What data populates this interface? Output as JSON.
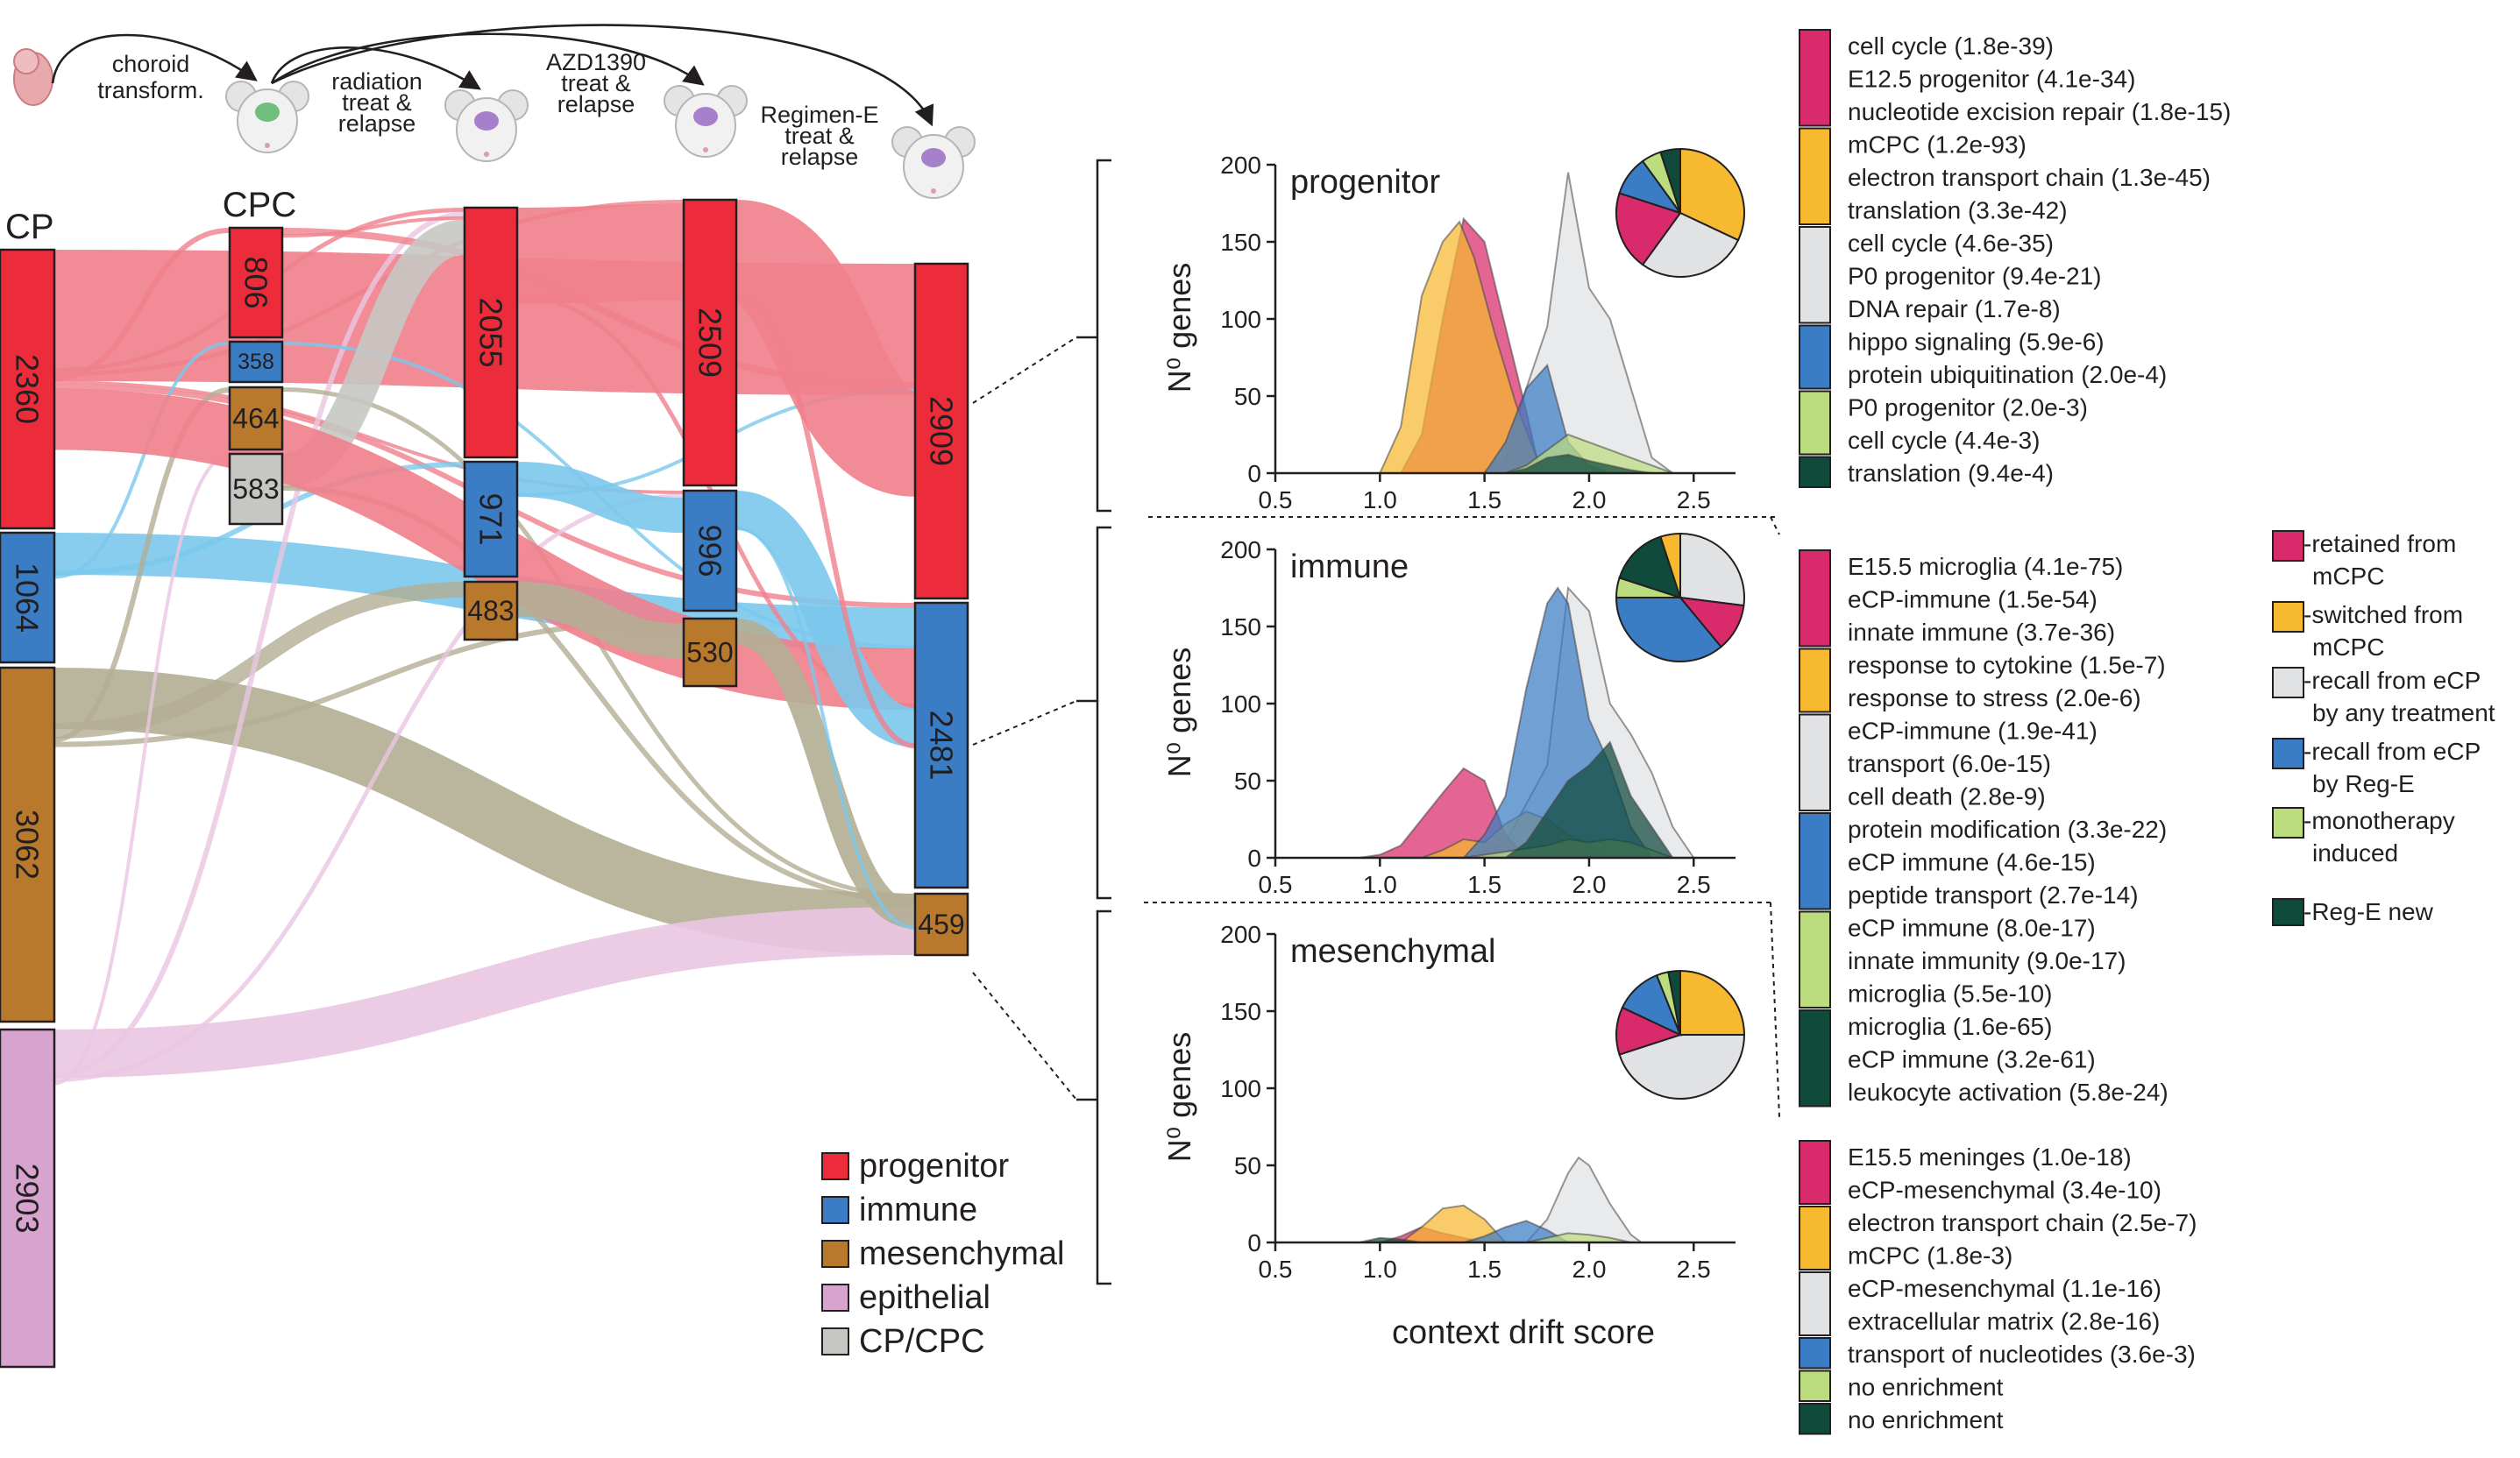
{
  "colors": {
    "progenitor": "#ec2c3b",
    "immune": "#3a7dc4",
    "mesenchymal": "#b8792c",
    "epithelial": "#d6a4ce",
    "cpcpc": "#c6c6c3",
    "flow_progenitor": "#f07f8c",
    "flow_immune": "#7bc8ec",
    "flow_mesenchymal": "#b3ae94",
    "flow_epithelial": "#eac5e2",
    "cat_retained": "#d92a6b",
    "cat_switched": "#f7b92f",
    "cat_recall_any": "#e0e2e4",
    "cat_recall_rege": "#3a7dc4",
    "cat_mono": "#bcdc80",
    "cat_rege_new": "#0f4a3b"
  },
  "timeline": {
    "steps": [
      "choroid transform.",
      "radiation treat & relapse",
      "AZD1390 treat & relapse",
      "Regimen-E treat & relapse"
    ]
  },
  "sankey": {
    "columns": [
      {
        "label": "CP",
        "nodes": [
          {
            "type": "progenitor",
            "value": 2360
          },
          {
            "type": "immune",
            "value": 1064
          },
          {
            "type": "mesenchymal",
            "value": 3062
          },
          {
            "type": "epithelial",
            "value": 2903
          }
        ]
      },
      {
        "label": "CPC",
        "nodes": [
          {
            "type": "progenitor",
            "value": 806
          },
          {
            "type": "immune",
            "value": 358
          },
          {
            "type": "mesenchymal",
            "value": 464
          },
          {
            "type": "cpcpc",
            "value": 583
          }
        ]
      },
      {
        "label": "",
        "nodes": [
          {
            "type": "progenitor",
            "value": 2055
          },
          {
            "type": "immune",
            "value": 971
          },
          {
            "type": "mesenchymal",
            "value": 483
          }
        ]
      },
      {
        "label": "",
        "nodes": [
          {
            "type": "progenitor",
            "value": 2509
          },
          {
            "type": "immune",
            "value": 996
          },
          {
            "type": "mesenchymal",
            "value": 530
          }
        ]
      },
      {
        "label": "",
        "nodes": [
          {
            "type": "progenitor",
            "value": 2909
          },
          {
            "type": "immune",
            "value": 2481
          },
          {
            "type": "mesenchymal",
            "value": 459
          }
        ]
      }
    ],
    "legend": [
      {
        "type": "progenitor",
        "label": "progenitor"
      },
      {
        "type": "immune",
        "label": "immune"
      },
      {
        "type": "mesenchymal",
        "label": "mesenchymal"
      },
      {
        "type": "epithelial",
        "label": "epithelial"
      },
      {
        "type": "cpcpc",
        "label": "CP/CPC"
      }
    ]
  },
  "chart_data": [
    {
      "type": "area",
      "title": "progenitor",
      "xlabel": "context drift score",
      "ylabel": "N⁰ genes",
      "xlim": [
        0.5,
        2.7
      ],
      "ylim": [
        0,
        200
      ],
      "xticks": [
        "0.5",
        "1.0",
        "1.5",
        "2.0",
        "2.5"
      ],
      "yticks": [
        "0",
        "50",
        "100",
        "150",
        "200"
      ],
      "series": [
        {
          "category": "recall_any",
          "x": [
            1.5,
            1.6,
            1.7,
            1.8,
            1.9,
            2.0,
            2.1,
            2.2,
            2.3,
            2.4
          ],
          "y": [
            2,
            8,
            55,
            95,
            195,
            120,
            100,
            55,
            10,
            0
          ]
        },
        {
          "category": "retained",
          "x": [
            1.1,
            1.2,
            1.3,
            1.4,
            1.5,
            1.6,
            1.7,
            1.75
          ],
          "y": [
            0,
            25,
            100,
            165,
            150,
            95,
            40,
            10
          ]
        },
        {
          "category": "switched",
          "x": [
            1.0,
            1.1,
            1.2,
            1.3,
            1.38,
            1.45,
            1.55,
            1.65,
            1.75,
            1.8
          ],
          "y": [
            0,
            30,
            115,
            150,
            163,
            140,
            90,
            45,
            10,
            0
          ]
        },
        {
          "category": "recall_rege",
          "x": [
            1.5,
            1.6,
            1.7,
            1.8,
            1.9,
            2.0,
            2.1
          ],
          "y": [
            0,
            20,
            55,
            70,
            20,
            5,
            0
          ]
        },
        {
          "category": "mono",
          "x": [
            1.6,
            1.7,
            1.8,
            1.9,
            2.0,
            2.1,
            2.2,
            2.3,
            2.4
          ],
          "y": [
            0,
            5,
            15,
            25,
            20,
            15,
            10,
            5,
            0
          ]
        },
        {
          "category": "rege_new",
          "x": [
            1.6,
            1.7,
            1.8,
            1.9,
            2.0,
            2.1,
            2.2,
            2.3
          ],
          "y": [
            0,
            3,
            10,
            12,
            8,
            5,
            2,
            0
          ]
        }
      ],
      "pie": [
        {
          "category": "switched",
          "value": 32
        },
        {
          "category": "recall_any",
          "value": 28
        },
        {
          "category": "retained",
          "value": 20
        },
        {
          "category": "recall_rege",
          "value": 10
        },
        {
          "category": "mono",
          "value": 5
        },
        {
          "category": "rege_new",
          "value": 5
        }
      ]
    },
    {
      "type": "area",
      "title": "immune",
      "xlabel": "context drift score",
      "ylabel": "N⁰ genes",
      "xlim": [
        0.5,
        2.7
      ],
      "ylim": [
        0,
        200
      ],
      "xticks": [
        "0.5",
        "1.0",
        "1.5",
        "2.0",
        "2.5"
      ],
      "yticks": [
        "0",
        "50",
        "100",
        "150",
        "200"
      ],
      "series": [
        {
          "category": "recall_any",
          "x": [
            1.4,
            1.6,
            1.8,
            1.9,
            2.0,
            2.1,
            2.2,
            2.3,
            2.4,
            2.5
          ],
          "y": [
            0,
            10,
            60,
            175,
            160,
            100,
            80,
            55,
            20,
            0
          ]
        },
        {
          "category": "recall_rege",
          "x": [
            1.4,
            1.5,
            1.6,
            1.7,
            1.8,
            1.85,
            1.9,
            2.0,
            2.1,
            2.2,
            2.3
          ],
          "y": [
            0,
            15,
            40,
            110,
            165,
            175,
            165,
            90,
            60,
            20,
            0
          ]
        },
        {
          "category": "rege_new",
          "x": [
            1.6,
            1.7,
            1.8,
            1.9,
            2.0,
            2.1,
            2.2,
            2.3,
            2.4
          ],
          "y": [
            0,
            10,
            30,
            50,
            60,
            75,
            40,
            20,
            0
          ]
        },
        {
          "category": "retained",
          "x": [
            0.9,
            1.0,
            1.1,
            1.2,
            1.3,
            1.4,
            1.5,
            1.6,
            1.7
          ],
          "y": [
            0,
            2,
            8,
            25,
            42,
            58,
            50,
            15,
            0
          ]
        },
        {
          "category": "switched",
          "x": [
            1.2,
            1.3,
            1.4,
            1.5,
            1.6,
            1.7,
            1.8,
            1.9,
            2.0,
            2.1
          ],
          "y": [
            0,
            5,
            12,
            10,
            22,
            30,
            25,
            15,
            8,
            0
          ]
        },
        {
          "category": "mono",
          "x": [
            1.4,
            1.6,
            1.8,
            1.9,
            2.0,
            2.1,
            2.2,
            2.3,
            2.4
          ],
          "y": [
            0,
            4,
            8,
            12,
            10,
            12,
            10,
            5,
            0
          ]
        }
      ],
      "pie": [
        {
          "category": "recall_any",
          "value": 27
        },
        {
          "category": "retained",
          "value": 12
        },
        {
          "category": "recall_rege",
          "value": 36
        },
        {
          "category": "mono",
          "value": 5
        },
        {
          "category": "rege_new",
          "value": 15
        },
        {
          "category": "switched",
          "value": 5
        }
      ]
    },
    {
      "type": "area",
      "title": "mesenchymal",
      "xlabel": "context drift score",
      "ylabel": "N⁰ genes",
      "xlim": [
        0.5,
        2.7
      ],
      "ylim": [
        0,
        200
      ],
      "xticks": [
        "0.5",
        "1.0",
        "1.5",
        "2.0",
        "2.5"
      ],
      "yticks": [
        "0",
        "50",
        "100",
        "150",
        "200"
      ],
      "series": [
        {
          "category": "recall_any",
          "x": [
            1.7,
            1.8,
            1.9,
            1.95,
            2.0,
            2.1,
            2.2,
            2.25
          ],
          "y": [
            0,
            15,
            45,
            55,
            50,
            25,
            5,
            0
          ]
        },
        {
          "category": "switched",
          "x": [
            1.1,
            1.2,
            1.3,
            1.4,
            1.5,
            1.6
          ],
          "y": [
            0,
            10,
            22,
            24,
            15,
            0
          ]
        },
        {
          "category": "recall_rege",
          "x": [
            1.4,
            1.5,
            1.6,
            1.7,
            1.8,
            1.9
          ],
          "y": [
            0,
            4,
            10,
            14,
            8,
            0
          ]
        },
        {
          "category": "retained",
          "x": [
            1.0,
            1.1,
            1.2,
            1.3,
            1.4,
            1.5
          ],
          "y": [
            0,
            4,
            10,
            6,
            3,
            0
          ]
        },
        {
          "category": "mono",
          "x": [
            1.7,
            1.8,
            1.9,
            2.0,
            2.1,
            2.2
          ],
          "y": [
            0,
            3,
            6,
            5,
            3,
            0
          ]
        },
        {
          "category": "rege_new",
          "x": [
            0.9,
            1.0,
            1.1,
            1.2
          ],
          "y": [
            0,
            3,
            2,
            0
          ]
        }
      ],
      "pie": [
        {
          "category": "switched",
          "value": 25
        },
        {
          "category": "recall_any",
          "value": 45
        },
        {
          "category": "retained",
          "value": 12
        },
        {
          "category": "recall_rege",
          "value": 12
        },
        {
          "category": "mono",
          "value": 3
        },
        {
          "category": "rege_new",
          "value": 3
        }
      ]
    }
  ],
  "enrichment": [
    {
      "group": "progenitor",
      "blocks": [
        {
          "category": "retained",
          "terms": [
            "cell cycle (1.8e-39)",
            "E12.5 progenitor (4.1e-34)",
            "nucleotide excision repair (1.8e-15)"
          ]
        },
        {
          "category": "switched",
          "terms": [
            "mCPC (1.2e-93)",
            "electron transport chain (1.3e-45)",
            "translation (3.3e-42)"
          ]
        },
        {
          "category": "recall_any",
          "terms": [
            "cell cycle (4.6e-35)",
            "P0 progenitor (9.4e-21)",
            "DNA repair (1.7e-8)"
          ]
        },
        {
          "category": "recall_rege",
          "terms": [
            "hippo signaling (5.9e-6)",
            "protein ubiquitination (2.0e-4)"
          ]
        },
        {
          "category": "mono",
          "terms": [
            "P0 progenitor (2.0e-3)",
            "cell cycle (4.4e-3)"
          ]
        },
        {
          "category": "rege_new",
          "terms": [
            "translation (9.4e-4)"
          ]
        }
      ]
    },
    {
      "group": "immune",
      "blocks": [
        {
          "category": "retained",
          "terms": [
            "E15.5 microglia (4.1e-75)",
            "eCP-immune (1.5e-54)",
            "innate immune (3.7e-36)"
          ]
        },
        {
          "category": "switched",
          "terms": [
            "response to cytokine (1.5e-7)",
            "response to stress (2.0e-6)"
          ]
        },
        {
          "category": "recall_any",
          "terms": [
            "eCP-immune (1.9e-41)",
            "transport (6.0e-15)",
            "cell death (2.8e-9)"
          ]
        },
        {
          "category": "recall_rege",
          "terms": [
            "protein modification (3.3e-22)",
            "eCP immune (4.6e-15)",
            "peptide transport (2.7e-14)"
          ]
        },
        {
          "category": "mono",
          "terms": [
            "eCP immune (8.0e-17)",
            "innate immunity (9.0e-17)",
            "microglia (5.5e-10)"
          ]
        },
        {
          "category": "rege_new",
          "terms": [
            "microglia (1.6e-65)",
            "eCP immune (3.2e-61)",
            "leukocyte activation (5.8e-24)"
          ]
        }
      ]
    },
    {
      "group": "mesenchymal",
      "blocks": [
        {
          "category": "retained",
          "terms": [
            "E15.5 meninges (1.0e-18)",
            "eCP-mesenchymal (3.4e-10)"
          ]
        },
        {
          "category": "switched",
          "terms": [
            "electron transport chain (2.5e-7)",
            "mCPC (1.8e-3)"
          ]
        },
        {
          "category": "recall_any",
          "terms": [
            "eCP-mesenchymal (1.1e-16)",
            "extracellular matrix (2.8e-16)"
          ]
        },
        {
          "category": "recall_rege",
          "terms": [
            "transport of nucleotides (3.6e-3)"
          ]
        },
        {
          "category": "mono",
          "terms": [
            "no enrichment"
          ]
        },
        {
          "category": "rege_new",
          "terms": [
            "no enrichment"
          ]
        }
      ]
    }
  ],
  "category_legend": [
    {
      "category": "retained",
      "lines": [
        "-retained from",
        "mCPC"
      ]
    },
    {
      "category": "switched",
      "lines": [
        "-switched from",
        "mCPC"
      ]
    },
    {
      "category": "recall_any",
      "lines": [
        "-recall from eCP",
        "by any treatment"
      ]
    },
    {
      "category": "recall_rege",
      "lines": [
        "-recall from eCP",
        "by Reg-E"
      ]
    },
    {
      "category": "mono",
      "lines": [
        "-monotherapy",
        "induced"
      ]
    },
    {
      "category": "rege_new",
      "lines": [
        "-Reg-E new"
      ]
    }
  ],
  "icons": [
    "embryo-icon",
    "mouse-head-icon"
  ]
}
